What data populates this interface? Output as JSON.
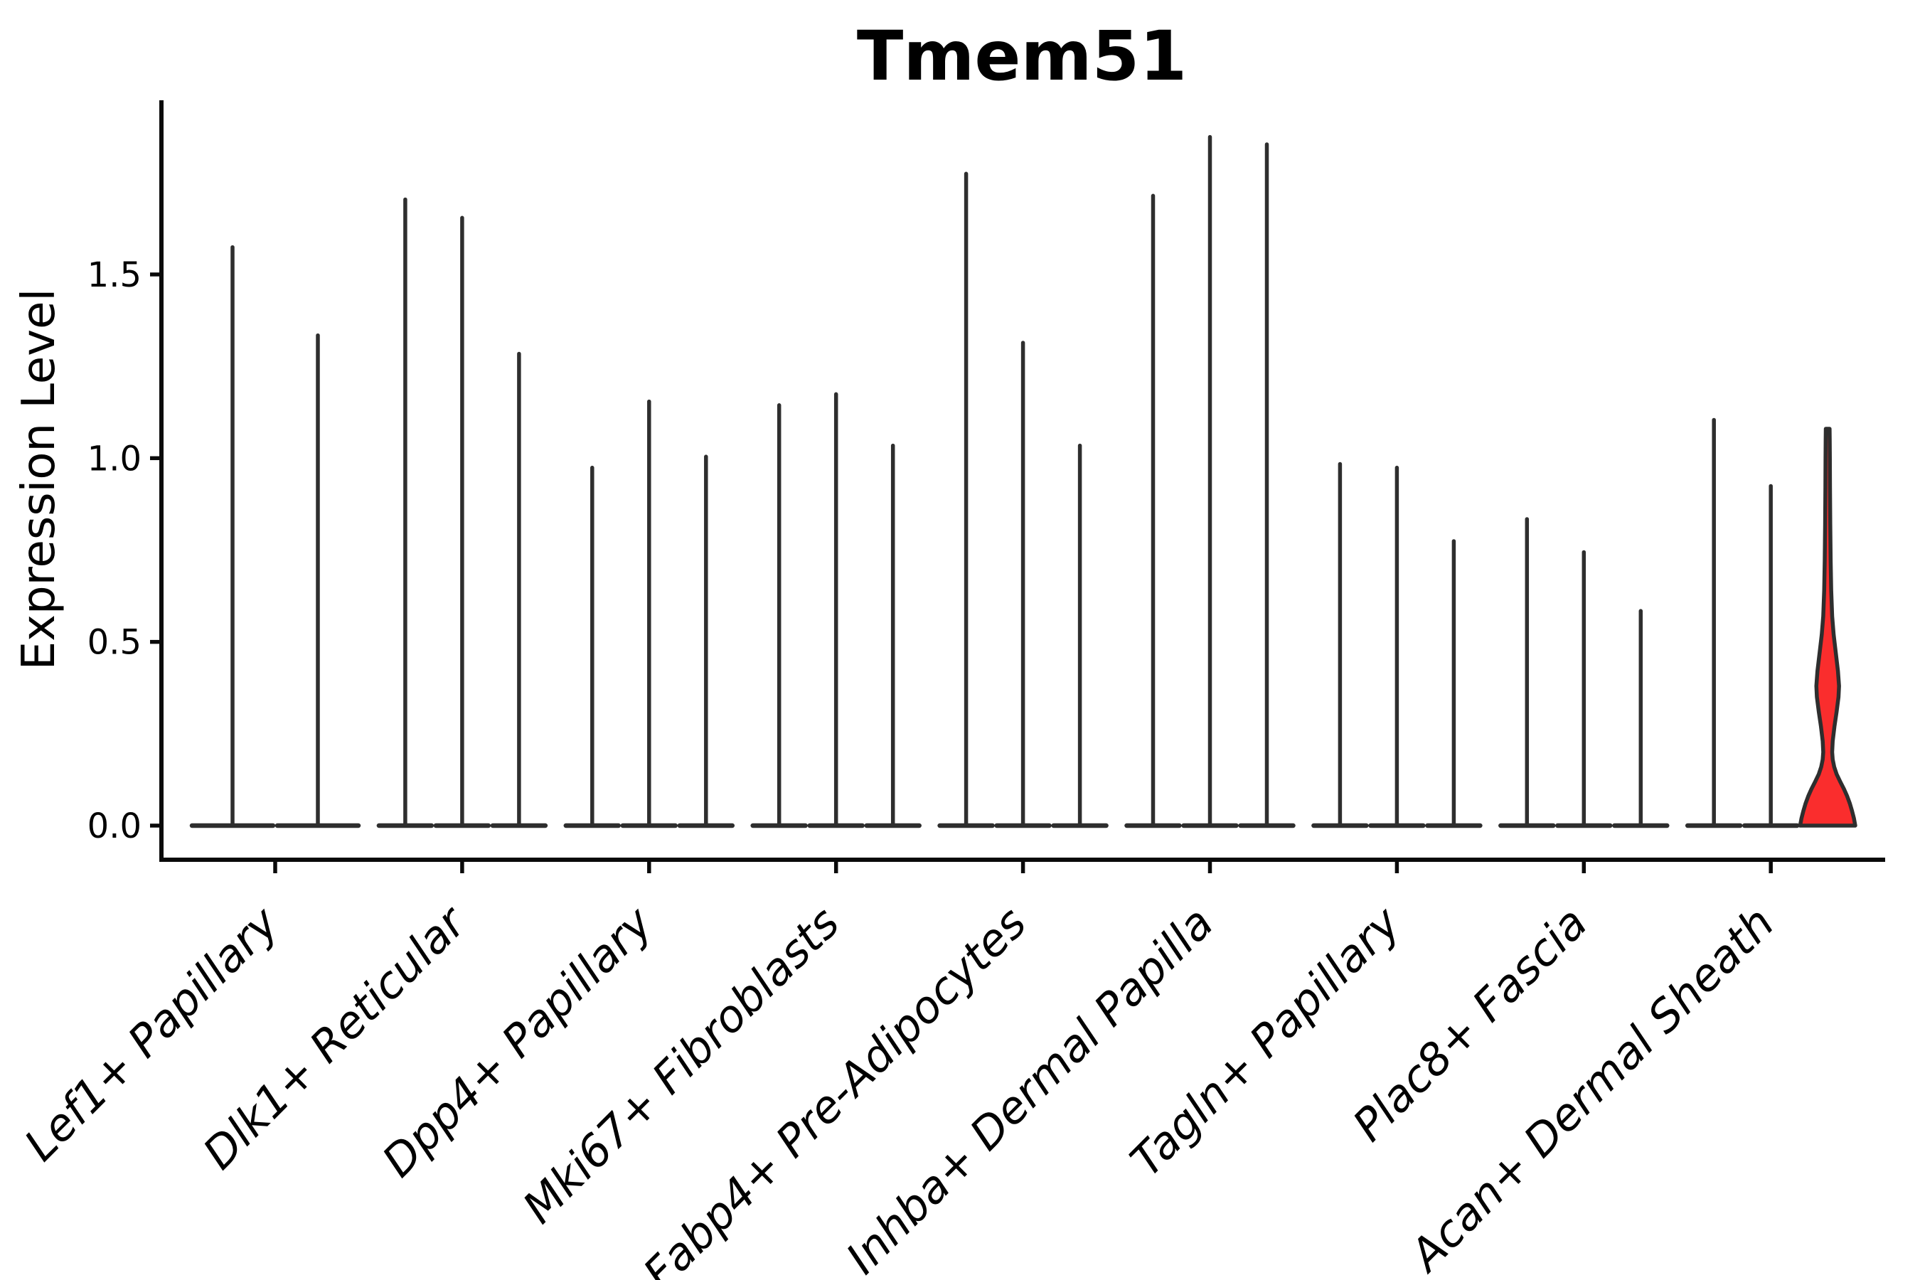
{
  "chart_data": {
    "type": "violin",
    "title": "Tmem51",
    "xlabel": "",
    "ylabel": "Expression Level",
    "ytick_labels": [
      "0.0",
      "0.5",
      "1.0",
      "1.5"
    ],
    "ytick_values": [
      0.0,
      0.5,
      1.0,
      1.5
    ],
    "ylim": [
      -0.094,
      1.974
    ],
    "grid": false,
    "legend_position": "none",
    "categories": [
      "Lef1+ Papillary",
      "Dlk1+ Reticular",
      "Dpp4+ Papillary",
      "Mki67+ Fibroblasts",
      "Fabp4+ Pre-Adipocytes",
      "Inhba+ Dermal Papilla",
      "Tagln+ Papillary",
      "Plac8+ Fascia",
      "Acan+ Dermal Sheath"
    ],
    "groups": [
      {
        "category": "Lef1+ Papillary",
        "violin_max": [
          1.58,
          1.34
        ]
      },
      {
        "category": "Dlk1+ Reticular",
        "violin_max": [
          1.71,
          1.66,
          1.29
        ]
      },
      {
        "category": "Dpp4+ Papillary",
        "violin_max": [
          0.98,
          1.16,
          1.01
        ]
      },
      {
        "category": "Mki67+ Fibroblasts",
        "violin_max": [
          1.15,
          1.18,
          1.04
        ]
      },
      {
        "category": "Fabp4+ Pre-Adipocytes",
        "violin_max": [
          1.78,
          1.32,
          1.04
        ]
      },
      {
        "category": "Inhba+ Dermal Papilla",
        "violin_max": [
          1.72,
          1.88,
          1.86
        ]
      },
      {
        "category": "Tagln+ Papillary",
        "violin_max": [
          0.99,
          0.98,
          0.78
        ]
      },
      {
        "category": "Plac8+ Fascia",
        "violin_max": [
          0.84,
          0.75,
          0.59
        ]
      },
      {
        "category": "Acan+ Dermal Sheath",
        "violin_max": [
          1.11,
          0.93,
          1.08
        ]
      }
    ],
    "highlight": {
      "group": "Acan+ Dermal Sheath",
      "violin_index": 2,
      "max": 1.08,
      "fill_color": "#fa2d2d",
      "profile": [
        [
          0.0,
          1.02
        ],
        [
          0.02,
          0.97
        ],
        [
          0.04,
          0.9
        ],
        [
          0.06,
          0.82
        ],
        [
          0.08,
          0.72
        ],
        [
          0.1,
          0.6
        ],
        [
          0.12,
          0.46
        ],
        [
          0.14,
          0.33
        ],
        [
          0.16,
          0.24
        ],
        [
          0.18,
          0.185
        ],
        [
          0.2,
          0.165
        ],
        [
          0.23,
          0.185
        ],
        [
          0.27,
          0.25
        ],
        [
          0.31,
          0.33
        ],
        [
          0.35,
          0.4
        ],
        [
          0.38,
          0.42
        ],
        [
          0.42,
          0.38
        ],
        [
          0.47,
          0.3
        ],
        [
          0.52,
          0.22
        ],
        [
          0.57,
          0.165
        ],
        [
          0.64,
          0.13
        ],
        [
          0.72,
          0.11
        ],
        [
          0.82,
          0.095
        ],
        [
          0.92,
          0.085
        ],
        [
          1.0,
          0.08
        ],
        [
          1.05,
          0.075
        ],
        [
          1.08,
          0.07
        ]
      ]
    },
    "colors": {
      "violin_stroke": "#2e2e2e",
      "highlight_fill": "#fa2d2d",
      "axis": "#0a0a0a",
      "text": "#000000",
      "background": "#ffffff"
    }
  }
}
